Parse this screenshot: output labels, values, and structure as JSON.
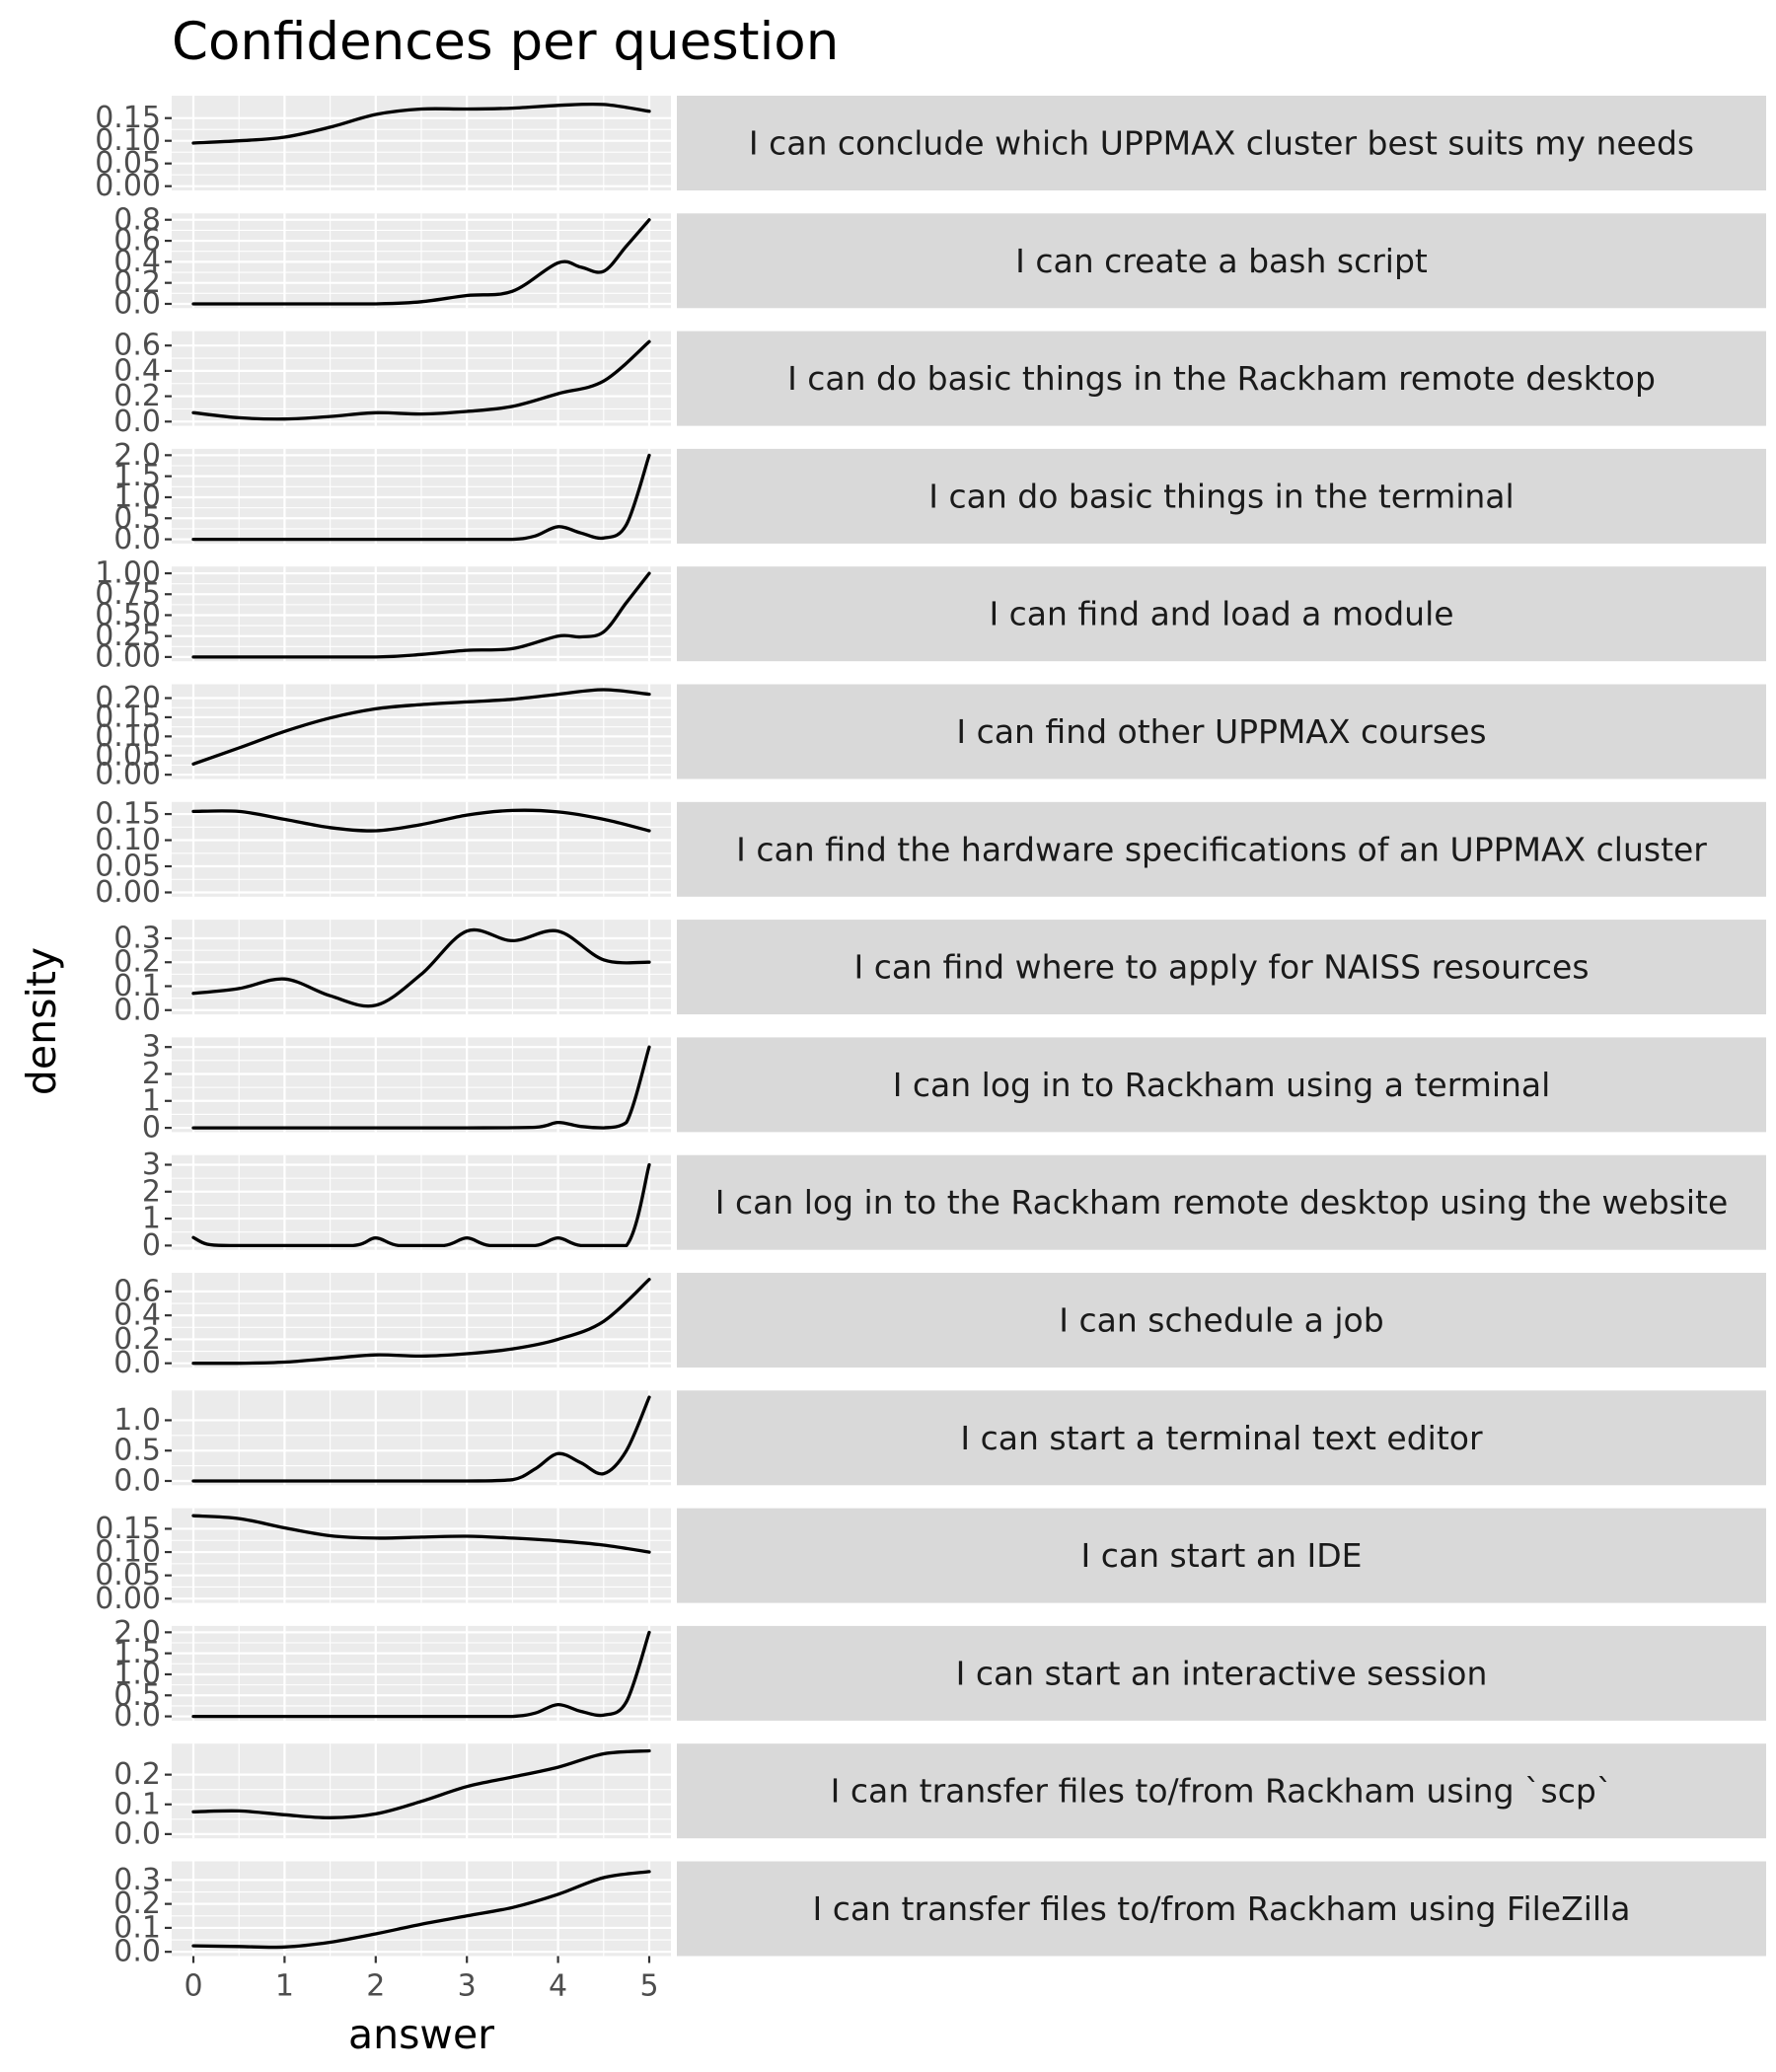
{
  "chart_data": {
    "type": "line",
    "title": "Confidences per question",
    "xlabel": "answer",
    "ylabel": "density",
    "xlim": [
      0,
      5
    ],
    "xticks": [
      0,
      1,
      2,
      3,
      4,
      5
    ],
    "grid": true,
    "facet_labels_position": "right",
    "panels": [
      {
        "label": "I can conclude which UPPMAX cluster best suits my needs",
        "yticks": [
          "0.00",
          "0.05",
          "0.10",
          "0.15"
        ],
        "ylim": [
          0,
          0.19
        ],
        "x": [
          0,
          0.5,
          1,
          1.5,
          2,
          2.5,
          3,
          3.5,
          4,
          4.5,
          5
        ],
        "y": [
          0.095,
          0.1,
          0.108,
          0.13,
          0.158,
          0.17,
          0.17,
          0.172,
          0.178,
          0.18,
          0.165
        ]
      },
      {
        "label": "I can create a bash script",
        "yticks": [
          "0.0",
          "0.2",
          "0.4",
          "0.6",
          "0.8"
        ],
        "ylim": [
          0,
          0.82
        ],
        "x": [
          0,
          0.5,
          1,
          1.5,
          2,
          2.5,
          3,
          3.5,
          4,
          4.25,
          4.5,
          4.75,
          5
        ],
        "y": [
          0,
          0,
          0,
          0,
          0,
          0.02,
          0.08,
          0.12,
          0.39,
          0.35,
          0.31,
          0.55,
          0.8
        ]
      },
      {
        "label": "I can do basic things in the Rackham remote desktop",
        "yticks": [
          "0.0",
          "0.2",
          "0.4",
          "0.6"
        ],
        "ylim": [
          0,
          0.68
        ],
        "x": [
          0,
          0.5,
          1,
          1.5,
          2,
          2.5,
          3,
          3.5,
          4,
          4.5,
          5
        ],
        "y": [
          0.07,
          0.03,
          0.02,
          0.04,
          0.07,
          0.06,
          0.08,
          0.12,
          0.22,
          0.32,
          0.63
        ]
      },
      {
        "label": "I can do basic things in the terminal",
        "yticks": [
          "0.0",
          "0.5",
          "1.0",
          "1.5",
          "2.0"
        ],
        "ylim": [
          0,
          2.05
        ],
        "x": [
          0,
          1,
          2,
          3,
          3.5,
          3.75,
          4,
          4.25,
          4.5,
          4.75,
          5
        ],
        "y": [
          0,
          0,
          0,
          0,
          0,
          0.08,
          0.3,
          0.15,
          0.03,
          0.35,
          2.0
        ]
      },
      {
        "label": "I can find and load a module",
        "yticks": [
          "0.00",
          "0.25",
          "0.50",
          "0.75",
          "1.00"
        ],
        "ylim": [
          0,
          1.03
        ],
        "x": [
          0,
          1,
          2,
          2.5,
          3,
          3.5,
          4,
          4.25,
          4.5,
          4.75,
          5
        ],
        "y": [
          0,
          0,
          0,
          0.03,
          0.08,
          0.1,
          0.25,
          0.24,
          0.3,
          0.65,
          1.0
        ]
      },
      {
        "label": "I can find other UPPMAX courses",
        "yticks": [
          "0.00",
          "0.05",
          "0.10",
          "0.15",
          "0.20"
        ],
        "ylim": [
          0,
          0.225
        ],
        "x": [
          0,
          0.5,
          1,
          1.5,
          2,
          2.5,
          3,
          3.5,
          4,
          4.5,
          5
        ],
        "y": [
          0.028,
          0.07,
          0.113,
          0.148,
          0.172,
          0.183,
          0.19,
          0.197,
          0.21,
          0.222,
          0.21
        ]
      },
      {
        "label": "I can find the hardware specifications of an UPPMAX cluster",
        "yticks": [
          "0.00",
          "0.05",
          "0.10",
          "0.15"
        ],
        "ylim": [
          0,
          0.165
        ],
        "x": [
          0,
          0.5,
          1,
          1.5,
          2,
          2.5,
          3,
          3.5,
          4,
          4.5,
          5
        ],
        "y": [
          0.155,
          0.155,
          0.14,
          0.124,
          0.118,
          0.13,
          0.148,
          0.157,
          0.154,
          0.14,
          0.118
        ]
      },
      {
        "label": "I can find where to apply for NAISS resources",
        "yticks": [
          "0.0",
          "0.1",
          "0.2",
          "0.3"
        ],
        "ylim": [
          0,
          0.36
        ],
        "x": [
          0,
          0.5,
          1,
          1.5,
          2,
          2.5,
          3,
          3.5,
          4,
          4.5,
          5
        ],
        "y": [
          0.07,
          0.09,
          0.13,
          0.06,
          0.02,
          0.15,
          0.33,
          0.29,
          0.33,
          0.21,
          0.2
        ]
      },
      {
        "label": "I can log in to Rackham using a terminal",
        "yticks": [
          "0",
          "1",
          "2",
          "3"
        ],
        "ylim": [
          0,
          3.2
        ],
        "x": [
          0,
          1,
          2,
          3,
          3.75,
          4,
          4.25,
          4.5,
          4.75,
          5
        ],
        "y": [
          0,
          0,
          0,
          0,
          0.02,
          0.2,
          0.05,
          0,
          0.2,
          3.0
        ]
      },
      {
        "label": "I can log in to the Rackham remote desktop using the website",
        "yticks": [
          "0",
          "1",
          "2",
          "3"
        ],
        "ylim": [
          0,
          3.2
        ],
        "x": [
          0,
          0.15,
          0.4,
          1,
          1.75,
          2,
          2.25,
          2.75,
          3,
          3.25,
          3.75,
          4,
          4.25,
          4.75,
          5
        ],
        "y": [
          0.3,
          0.05,
          0,
          0,
          0,
          0.28,
          0,
          0,
          0.28,
          0,
          0,
          0.28,
          0,
          0,
          3.0
        ]
      },
      {
        "label": "I can schedule a job",
        "yticks": [
          "0.0",
          "0.2",
          "0.4",
          "0.6"
        ],
        "ylim": [
          0,
          0.72
        ],
        "x": [
          0,
          0.5,
          1,
          1.5,
          2,
          2.5,
          3,
          3.5,
          4,
          4.5,
          5
        ],
        "y": [
          0,
          0,
          0.01,
          0.04,
          0.07,
          0.06,
          0.08,
          0.12,
          0.2,
          0.35,
          0.7
        ]
      },
      {
        "label": "I can start a terminal text editor",
        "yticks": [
          "0.0",
          "0.5",
          "1.0"
        ],
        "ylim": [
          0,
          1.42
        ],
        "x": [
          0,
          1,
          2,
          3,
          3.5,
          3.75,
          4,
          4.25,
          4.5,
          4.75,
          5
        ],
        "y": [
          0,
          0,
          0,
          0,
          0.02,
          0.2,
          0.45,
          0.3,
          0.12,
          0.5,
          1.38
        ]
      },
      {
        "label": "I can start an IDE",
        "yticks": [
          "0.00",
          "0.05",
          "0.10",
          "0.15"
        ],
        "ylim": [
          0,
          0.185
        ],
        "x": [
          0,
          0.5,
          1,
          1.5,
          2,
          2.5,
          3,
          3.5,
          4,
          4.5,
          5
        ],
        "y": [
          0.178,
          0.172,
          0.152,
          0.135,
          0.13,
          0.132,
          0.134,
          0.13,
          0.124,
          0.115,
          0.1
        ]
      },
      {
        "label": "I can start an interactive session",
        "yticks": [
          "0.0",
          "0.5",
          "1.0",
          "1.5",
          "2.0"
        ],
        "ylim": [
          0,
          2.05
        ],
        "x": [
          0,
          1,
          2,
          3,
          3.5,
          3.75,
          4,
          4.25,
          4.5,
          4.75,
          5
        ],
        "y": [
          0,
          0,
          0,
          0,
          0,
          0.08,
          0.28,
          0.12,
          0.03,
          0.35,
          2.0
        ]
      },
      {
        "label": "I can transfer files to/from Rackham using `scp`",
        "yticks": [
          "0.0",
          "0.1",
          "0.2"
        ],
        "ylim": [
          0,
          0.29
        ],
        "x": [
          0,
          0.5,
          1,
          1.5,
          2,
          2.5,
          3,
          3.5,
          4,
          4.5,
          5
        ],
        "y": [
          0.075,
          0.078,
          0.065,
          0.055,
          0.068,
          0.11,
          0.16,
          0.192,
          0.225,
          0.27,
          0.28
        ]
      },
      {
        "label": "I can transfer files to/from Rackham using FileZilla",
        "yticks": [
          "0.0",
          "0.1",
          "0.2",
          "0.3"
        ],
        "ylim": [
          0,
          0.36
        ],
        "x": [
          0,
          0.5,
          1,
          1.5,
          2,
          2.5,
          3,
          3.5,
          4,
          4.5,
          5
        ],
        "y": [
          0.025,
          0.022,
          0.02,
          0.04,
          0.075,
          0.115,
          0.15,
          0.185,
          0.24,
          0.31,
          0.335
        ]
      }
    ]
  }
}
